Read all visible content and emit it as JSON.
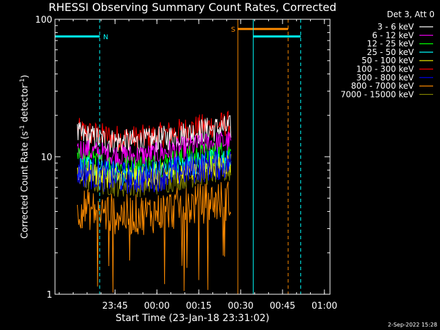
{
  "chart_data": {
    "type": "line",
    "title": "RHESSI Observing Summary Count Rates, Corrected",
    "xlabel": "Start Time (23-Jan-18 23:31:02)",
    "ylabel_main": "Corrected Count Rate (s",
    "ylabel_sup1": "-1",
    "ylabel_mid": " detector",
    "ylabel_sup2": "-1",
    "ylabel_end": ")",
    "y_scale": "log",
    "ylim": [
      1,
      100
    ],
    "y_ticks": [
      {
        "v": 1,
        "label": "1"
      },
      {
        "v": 10,
        "label": "10"
      },
      {
        "v": 100,
        "label": "100"
      }
    ],
    "xlim_min": [
      -7.5,
      91
    ],
    "x_ticks": [
      {
        "v": 14,
        "label": "23:45"
      },
      {
        "v": 29,
        "label": "00:00"
      },
      {
        "v": 44,
        "label": "00:15"
      },
      {
        "v": 59,
        "label": "00:30"
      },
      {
        "v": 74,
        "label": "00:45"
      },
      {
        "v": 89,
        "label": "01:00"
      }
    ],
    "legend_title": "Det 3, Att 0",
    "series": [
      {
        "name": "3 - 6 keV",
        "color": "#ffffff",
        "base": 14.5,
        "spread": 0.22
      },
      {
        "name": "6 - 12 keV",
        "color": "#ff00ff",
        "base": 11.5,
        "spread": 0.2
      },
      {
        "name": "12 - 25 keV",
        "color": "#00ff00",
        "base": 9.5,
        "spread": 0.22
      },
      {
        "name": "25 - 50 keV",
        "color": "#00ffff",
        "base": 8.5,
        "spread": 0.2
      },
      {
        "name": "50 - 100 keV",
        "color": "#ffff00",
        "base": 8.0,
        "spread": 0.2
      },
      {
        "name": "100 - 300 keV",
        "color": "#ff0000",
        "base": 15.5,
        "spread": 0.22
      },
      {
        "name": "300 - 800 keV",
        "color": "#0000ff",
        "base": 8.0,
        "spread": 0.28
      },
      {
        "name": "800 - 7000 keV",
        "color": "#ff8c00",
        "base": 4.3,
        "spread": 0.35
      },
      {
        "name": "7000 - 15000 keV",
        "color": "#808000",
        "base": 7.0,
        "spread": 0.2
      }
    ],
    "data_start_min": 0.5,
    "data_end_min": 55.5,
    "markers": [
      {
        "label": "N",
        "color": "#00ffff",
        "level": 75,
        "x_start": -7.5,
        "x_end": 8.5,
        "line_solid": -7.5,
        "line_dashed": 8.5
      },
      {
        "label": "S",
        "color": "#ff8c00",
        "level": 85,
        "x_start": 58.0,
        "x_end": 76.0,
        "line_solid": 58.0,
        "line_dashed": 76.0
      },
      {
        "label": "",
        "color": "#00ffff",
        "level": 75,
        "x_start": 63.5,
        "x_end": 80.5,
        "line_solid": 63.5,
        "line_dashed": 80.5
      }
    ],
    "grid": false
  },
  "footer_date": "2-Sep-2022 15:28"
}
